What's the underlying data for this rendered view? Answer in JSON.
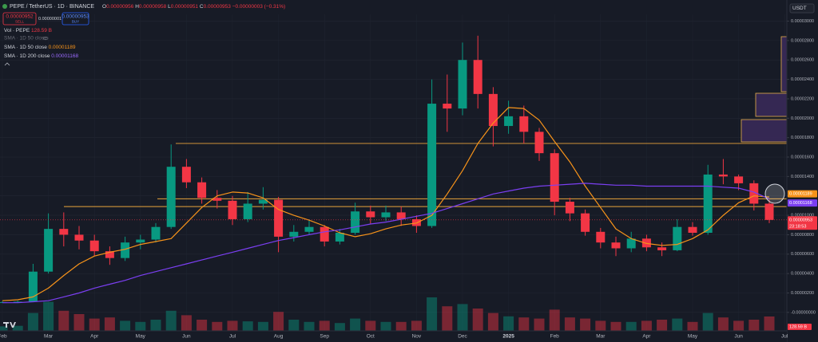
{
  "header": {
    "symbol": "PEPE / TetherUS · 1D · BINANCE",
    "ohlc": [
      {
        "key": "O",
        "value": "0.00000956"
      },
      {
        "key": "H",
        "value": "0.00000958"
      },
      {
        "key": "L",
        "value": "0.00000951"
      },
      {
        "key": "C",
        "value": "0.00000953"
      }
    ],
    "change": "−0.00000003 (−0.31%)",
    "sell": {
      "price": "0.00000952",
      "label": "SELL"
    },
    "spread": "0.00000001",
    "buy": {
      "price": "0.00000953",
      "label": "BUY"
    },
    "volume_legend": "Vol · PEPE",
    "hidden_indicator": "SMA · 1D 50 close",
    "currency": "USDT"
  },
  "chart_data": {
    "type": "candlestick",
    "categories": [
      "Feb",
      null,
      null,
      "Mar",
      null,
      null,
      "Apr",
      null,
      null,
      "May",
      null,
      null,
      "Jun",
      null,
      null,
      "Jul",
      null,
      null,
      "Aug",
      null,
      null,
      "Sep",
      null,
      null,
      "Oct",
      null,
      null,
      "Nov",
      null,
      null,
      "Dec",
      null,
      null,
      "2025",
      null,
      null,
      "Feb",
      null,
      null,
      "Mar",
      null,
      null,
      "Apr",
      null,
      null,
      "May",
      null,
      null,
      "Jun",
      null,
      null,
      "Jul"
    ],
    "open": [
      1e-06,
      1.05e-06,
      1.1e-06,
      4.2e-06,
      8.6e-06,
      8e-06,
      7.4e-06,
      6.3e-06,
      5.6e-06,
      7.2e-06,
      7.5e-06,
      8.8e-06,
      1.5e-05,
      1.34e-05,
      1.18e-05,
      1.15e-05,
      9.6e-06,
      1.12e-05,
      1.16e-05,
      7.8e-06,
      8.3e-06,
      8.8e-06,
      7.3e-06,
      8.2e-06,
      1.04e-05,
      9.8e-06,
      1.03e-05,
      9.6e-06,
      8.9e-06,
      2.15e-05,
      2.1e-05,
      2.6e-05,
      2.25e-05,
      1.92e-05,
      2.02e-05,
      1.86e-05,
      1.64e-05,
      1.14e-05,
      1.02e-05,
      8.3e-06,
      7.2e-06,
      6.6e-06,
      7.6e-06,
      6.7e-06,
      6.4e-06,
      8.8e-06,
      8.2e-06,
      1.42e-05,
      1.4e-05,
      1.33e-05,
      1.12e-05,
      null
    ],
    "high": [
      1.15e-06,
      1.2e-06,
      5e-06,
      1.02e-05,
      1.03e-05,
      8.9e-06,
      8e-06,
      6.8e-06,
      7.8e-06,
      8e-06,
      9.2e-06,
      1.73e-05,
      1.58e-05,
      1.39e-05,
      1.26e-05,
      1.2e-05,
      1.24e-05,
      1.29e-05,
      1.19e-05,
      9e-06,
      9.6e-06,
      9e-06,
      8.6e-06,
      1.13e-05,
      1.1e-05,
      1.1e-05,
      1.09e-05,
      1e-05,
      2.4e-05,
      2.45e-05,
      2.78e-05,
      2.85e-05,
      2.32e-05,
      2.18e-05,
      2.13e-05,
      1.9e-05,
      1.68e-05,
      1.18e-05,
      1.06e-05,
      8.7e-06,
      7.8e-06,
      8.3e-06,
      8e-06,
      7.2e-06,
      9.6e-06,
      9.3e-06,
      1.52e-05,
      1.58e-05,
      1.42e-05,
      1.36e-05,
      1.16e-05,
      null
    ],
    "low": [
      9.8e-07,
      1e-06,
      1.05e-06,
      4e-06,
      6.8e-06,
      6.5e-06,
      5.8e-06,
      4.9e-06,
      5.3e-06,
      6.5e-06,
      7.2e-06,
      8.6e-06,
      1.28e-05,
      1.12e-05,
      1.07e-05,
      9e-06,
      9.3e-06,
      1.06e-05,
      6.2e-06,
      7.3e-06,
      8e-06,
      6.8e-06,
      7e-06,
      8e-06,
      9.1e-06,
      9.4e-06,
      8.9e-06,
      8.2e-06,
      8.7e-06,
      1.86e-05,
      2.03e-05,
      2.1e-05,
      1.71e-05,
      1.84e-05,
      1.74e-05,
      1.56e-05,
      1e-05,
      9.4e-06,
      7.9e-06,
      6.6e-06,
      5.8e-06,
      6.2e-06,
      6.3e-06,
      5.8e-06,
      6.3e-06,
      7.9e-06,
      8e-06,
      1.32e-05,
      1.26e-05,
      1.05e-05,
      9.2e-06,
      null
    ],
    "close": [
      1.05e-06,
      1.1e-06,
      4.2e-06,
      8.6e-06,
      8e-06,
      7.4e-06,
      6.3e-06,
      5.6e-06,
      7.2e-06,
      7.5e-06,
      8.8e-06,
      1.5e-05,
      1.34e-05,
      1.18e-05,
      1.15e-05,
      9.6e-06,
      1.12e-05,
      1.16e-05,
      7.8e-06,
      8.3e-06,
      8.8e-06,
      7.3e-06,
      8.2e-06,
      1.04e-05,
      9.8e-06,
      1.03e-05,
      9.6e-06,
      8.9e-06,
      2.15e-05,
      2.1e-05,
      2.6e-05,
      2.25e-05,
      1.92e-05,
      2.02e-05,
      1.86e-05,
      1.64e-05,
      1.14e-05,
      1.02e-05,
      8.3e-06,
      7.2e-06,
      6.6e-06,
      7.6e-06,
      6.7e-06,
      6.4e-06,
      8.8e-06,
      8.2e-06,
      1.42e-05,
      1.4e-05,
      1.33e-05,
      1.12e-05,
      9.53e-06,
      null
    ],
    "up_color": "#089981",
    "down_color": "#f23645",
    "volume": [
      40,
      45,
      160,
      260,
      180,
      150,
      110,
      120,
      90,
      80,
      100,
      180,
      140,
      100,
      80,
      90,
      85,
      80,
      170,
      100,
      80,
      90,
      70,
      110,
      90,
      80,
      80,
      90,
      300,
      220,
      240,
      200,
      160,
      130,
      120,
      110,
      190,
      120,
      110,
      90,
      80,
      80,
      90,
      100,
      110,
      80,
      160,
      120,
      90,
      100,
      128.59,
      null
    ],
    "volume_label": "128.59 B",
    "series": [
      {
        "name": "SMA · 1D 50 close",
        "color": "#f7931a",
        "price_label": "0.00001189",
        "values": [
          1.2e-06,
          1.3e-06,
          1.6e-06,
          2.5e-06,
          3.8e-06,
          5e-06,
          5.8e-06,
          6.2e-06,
          6.5e-06,
          7e-06,
          7.3e-06,
          7.6e-06,
          9.2e-06,
          1.08e-05,
          1.2e-05,
          1.24e-05,
          1.23e-05,
          1.18e-05,
          1.06e-05,
          1e-05,
          9.5e-06,
          8.9e-06,
          8.2e-06,
          7.8e-06,
          8.1e-06,
          8.6e-06,
          9e-06,
          9.2e-06,
          1e-05,
          1.22e-05,
          1.46e-05,
          1.74e-05,
          1.95e-05,
          2.11e-05,
          2.1e-05,
          1.98e-05,
          1.76e-05,
          1.55e-05,
          1.3e-05,
          1.08e-05,
          8.6e-06,
          7.6e-06,
          7.1e-06,
          6.9e-06,
          7e-06,
          7.6e-06,
          8.5e-06,
          1e-05,
          1.13e-05,
          1.2e-05,
          1.189e-05,
          null
        ]
      },
      {
        "name": "SMA · 1D 200 close",
        "color": "#7b3ff2",
        "price_label": "0.00001168",
        "values": [
          1e-06,
          1e-06,
          1.1e-06,
          1.2e-06,
          1.6e-06,
          2e-06,
          2.5e-06,
          2.9e-06,
          3.3e-06,
          3.8e-06,
          4.2e-06,
          4.6e-06,
          5e-06,
          5.4e-06,
          5.8e-06,
          6.2e-06,
          6.6e-06,
          7e-06,
          7.4e-06,
          7.7e-06,
          8e-06,
          8.3e-06,
          8.5e-06,
          8.8e-06,
          9.1e-06,
          9.3e-06,
          9.6e-06,
          9.9e-06,
          1.02e-05,
          1.07e-05,
          1.12e-05,
          1.17e-05,
          1.22e-05,
          1.25e-05,
          1.28e-05,
          1.3e-05,
          1.31e-05,
          1.32e-05,
          1.33e-05,
          1.32e-05,
          1.31e-05,
          1.31e-05,
          1.3e-05,
          1.3e-05,
          1.3e-05,
          1.3e-05,
          1.3e-05,
          1.29e-05,
          1.28e-05,
          1.24e-05,
          1.168e-05,
          null
        ]
      }
    ],
    "hlines": [
      1.74e-05,
      1.17e-05,
      1.09e-05
    ],
    "last_price": {
      "value": 9.53e-06,
      "label": "0.00000953"
    },
    "countdown": "23:18:53",
    "ylim": [
      -1.9e-06,
      3.07e-05
    ],
    "yticks": [
      {
        "value": 0,
        "label": "-0.00000000"
      },
      {
        "value": 2e-06,
        "label": "0.00000200"
      },
      {
        "value": 4e-06,
        "label": "0.00000400"
      },
      {
        "value": 6e-06,
        "label": "0.00000600"
      },
      {
        "value": 8e-06,
        "label": "0.00000800"
      },
      {
        "value": 1e-05,
        "label": "0.00001000"
      },
      {
        "value": 1.2e-05,
        "label": "0.00001200"
      },
      {
        "value": 1.4e-05,
        "label": "0.00001400"
      },
      {
        "value": 1.6e-05,
        "label": "0.00001600"
      },
      {
        "value": 1.8e-05,
        "label": "0.00001800"
      },
      {
        "value": 2e-05,
        "label": "0.00002000"
      },
      {
        "value": 2.2e-05,
        "label": "0.00002200"
      },
      {
        "value": 2.4e-05,
        "label": "0.00002400"
      },
      {
        "value": 2.6e-05,
        "label": "0.00002600"
      },
      {
        "value": 2.8e-05,
        "label": "0.00002800"
      },
      {
        "value": 3e-05,
        "label": "0.00003000"
      }
    ],
    "grid": true
  }
}
